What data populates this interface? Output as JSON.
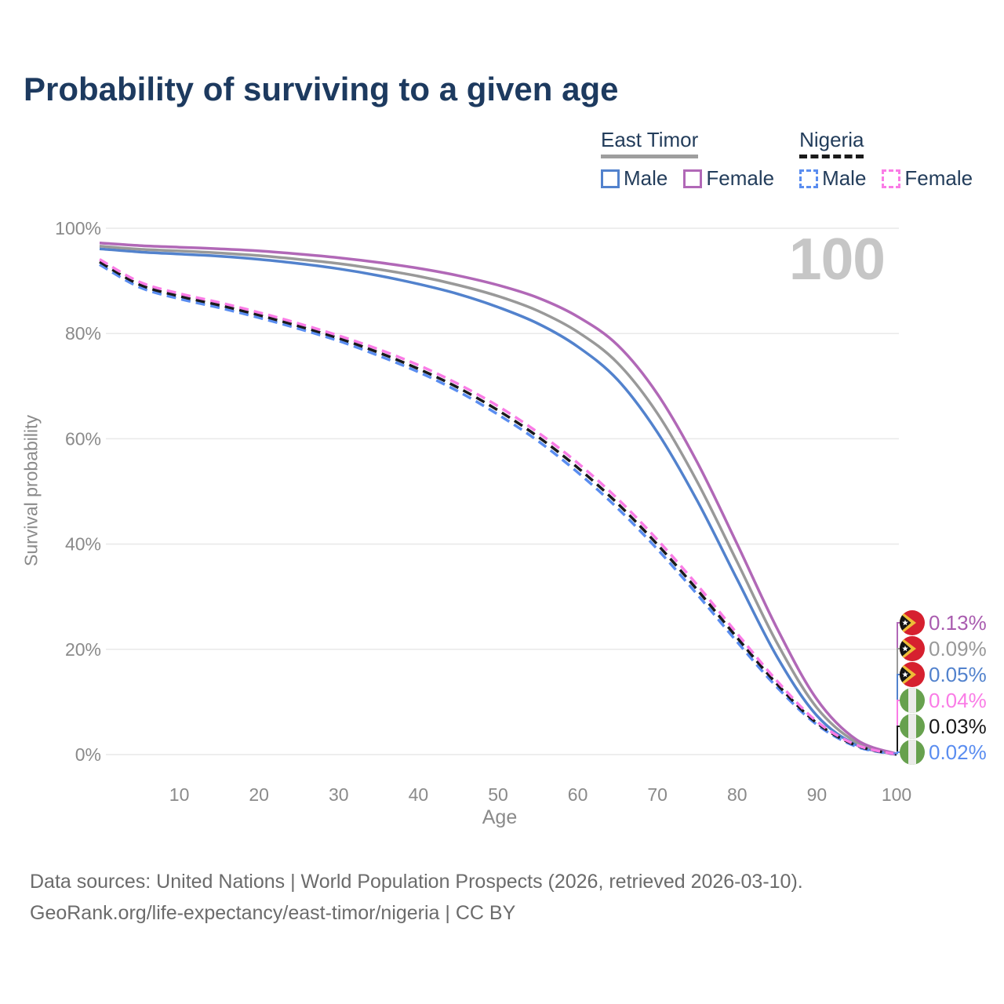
{
  "header": {
    "title": "Probability of surviving to a given age"
  },
  "watermark": "100",
  "legend": {
    "groups": [
      {
        "label": "East Timor",
        "underline": "solid",
        "underline_color": "#9e9e9e",
        "items": [
          {
            "label": "Male",
            "color": "#5282cd",
            "dashed": false
          },
          {
            "label": "Female",
            "color": "#b168b7",
            "dashed": false
          }
        ]
      },
      {
        "label": "Nigeria",
        "underline": "dashed",
        "underline_color": "#1a1a1a",
        "items": [
          {
            "label": "Male",
            "color": "#5a8df0",
            "dashed": true
          },
          {
            "label": "Female",
            "color": "#fa7ce6",
            "dashed": true
          }
        ]
      }
    ]
  },
  "chart_data": {
    "type": "line",
    "title": "Probability of surviving to a given age",
    "xlabel": "Age",
    "ylabel": "Survival probability",
    "xlim": [
      0,
      100
    ],
    "ylim": [
      0,
      100
    ],
    "grid": "horizontal-only",
    "x_ticks": [
      10,
      20,
      30,
      40,
      50,
      60,
      70,
      80,
      90,
      100
    ],
    "y_tick_values": [
      0,
      20,
      40,
      60,
      80,
      100
    ],
    "y_tick_labels": [
      "0%",
      "20%",
      "40%",
      "60%",
      "80%",
      "100%"
    ],
    "x": [
      0,
      5,
      10,
      15,
      20,
      25,
      30,
      35,
      40,
      45,
      50,
      55,
      60,
      65,
      70,
      75,
      80,
      85,
      90,
      95,
      100
    ],
    "series": [
      {
        "name": "East Timor Female",
        "color": "#b168b7",
        "style": "solid",
        "end_label": "0.13%",
        "values": [
          97.2,
          96.7,
          96.4,
          96.1,
          95.7,
          95.1,
          94.4,
          93.5,
          92.4,
          91.0,
          89.2,
          86.8,
          83.2,
          77.8,
          68.5,
          55.5,
          40.0,
          24.0,
          10.5,
          2.8,
          0.13
        ]
      },
      {
        "name": "East Timor Both sexes",
        "color": "#999999",
        "style": "solid",
        "end_label": "0.09%",
        "values": [
          96.6,
          96.0,
          95.7,
          95.3,
          94.8,
          94.1,
          93.3,
          92.2,
          90.9,
          89.2,
          87.1,
          84.3,
          80.3,
          74.4,
          64.8,
          51.8,
          36.6,
          21.2,
          8.9,
          2.3,
          0.09
        ]
      },
      {
        "name": "East Timor Male",
        "color": "#5282cd",
        "style": "solid",
        "end_label": "0.05%",
        "values": [
          96.1,
          95.5,
          95.1,
          94.7,
          94.1,
          93.3,
          92.3,
          91.0,
          89.4,
          87.5,
          85.0,
          81.9,
          77.5,
          71.2,
          61.2,
          48.2,
          33.3,
          18.6,
          7.4,
          1.8,
          0.05
        ]
      },
      {
        "name": "Nigeria Female",
        "color": "#fa7ce6",
        "style": "dashed",
        "end_label": "0.04%",
        "values": [
          94.1,
          89.8,
          87.6,
          85.9,
          84.0,
          81.9,
          79.6,
          77.0,
          74.0,
          70.4,
          66.2,
          61.2,
          55.4,
          48.6,
          40.8,
          32.2,
          23.0,
          14.0,
          6.3,
          1.8,
          0.04
        ]
      },
      {
        "name": "Nigeria Both sexes",
        "color": "#1a1a1a",
        "style": "dashed",
        "end_label": "0.03%",
        "values": [
          93.6,
          89.3,
          87.1,
          85.4,
          83.5,
          81.4,
          79.1,
          76.4,
          73.3,
          69.7,
          65.4,
          60.4,
          54.5,
          47.7,
          39.9,
          31.3,
          22.2,
          13.4,
          6.0,
          1.7,
          0.03
        ]
      },
      {
        "name": "Nigeria Male",
        "color": "#5a8df0",
        "style": "dashed",
        "end_label": "0.02%",
        "values": [
          93.1,
          88.8,
          86.6,
          84.9,
          83.0,
          80.9,
          78.6,
          75.8,
          72.7,
          69.0,
          64.6,
          59.6,
          53.6,
          46.8,
          39.0,
          30.4,
          21.4,
          12.8,
          5.7,
          1.5,
          0.02
        ]
      }
    ],
    "legend_position": "top-right"
  },
  "end_labels": [
    {
      "flag": "east-timor",
      "value": "0.13%",
      "color": "#a95caf"
    },
    {
      "flag": "east-timor",
      "value": "0.09%",
      "color": "#999999"
    },
    {
      "flag": "east-timor",
      "value": "0.05%",
      "color": "#5282cd"
    },
    {
      "flag": "nigeria",
      "value": "0.04%",
      "color": "#fa7ce6"
    },
    {
      "flag": "nigeria",
      "value": "0.03%",
      "color": "#1a1a1a"
    },
    {
      "flag": "nigeria",
      "value": "0.02%",
      "color": "#5a8df0"
    }
  ],
  "icons": {
    "east_timor_flag": {
      "red": "#d6202f",
      "yellow": "#eebd38",
      "black": "#141414",
      "star": "#ffffff"
    },
    "nigeria_flag": {
      "green": "#67a14e",
      "white": "#ebebe9"
    }
  },
  "colors": {
    "title": "#1d3a5f",
    "axis_text": "#8a8a8a",
    "gridline": "#e9e9e9",
    "watermark": "#c6c6c6",
    "footer": "#6b6b6b"
  },
  "footer": {
    "line1": "Data sources: United Nations | World Population Prospects (2026, retrieved 2026-03-10).",
    "line2": "GeoRank.org/life-expectancy/east-timor/nigeria | CC BY"
  }
}
